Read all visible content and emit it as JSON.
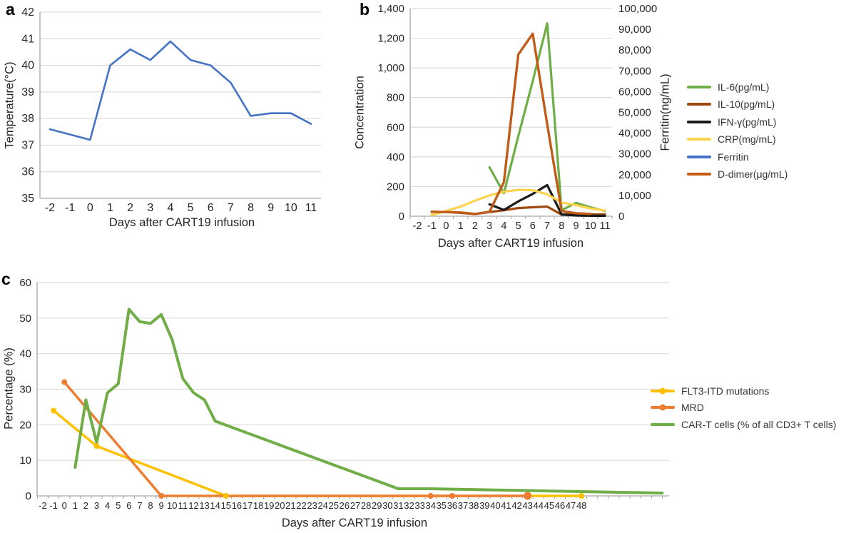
{
  "figure": {
    "panels": [
      {
        "id": "a",
        "label": "a"
      },
      {
        "id": "b",
        "label": "b"
      },
      {
        "id": "c",
        "label": "c"
      }
    ]
  },
  "chart_data": [
    {
      "panel": "a",
      "type": "line",
      "title": "",
      "xlabel": "Days after CART19 infusion",
      "ylabel": "Temperature(°C)",
      "x_domain": [
        -2,
        11
      ],
      "x_labels": [
        "-2",
        "-1",
        "0",
        "1",
        "2",
        "3",
        "4",
        "5",
        "6",
        "7",
        "8",
        "9",
        "10",
        "11"
      ],
      "ylim": [
        35,
        42
      ],
      "y_ticks": [
        35,
        36,
        37,
        38,
        39,
        40,
        41,
        42
      ],
      "y_tick_labels": [
        "35",
        "36",
        "37",
        "38",
        "39",
        "40",
        "41",
        "42"
      ],
      "grid": true,
      "legend_position": "none",
      "series": [
        {
          "name": "Temperature",
          "color": "#4472C4",
          "width": 2.6,
          "axis": "left",
          "points": [
            [
              -2,
              37.6
            ],
            [
              -1,
              37.4
            ],
            [
              0,
              37.2
            ],
            [
              1,
              40.0
            ],
            [
              2,
              40.6
            ],
            [
              3,
              40.2
            ],
            [
              4,
              40.9
            ],
            [
              5,
              40.2
            ],
            [
              6,
              40.0
            ],
            [
              7,
              39.35
            ],
            [
              8,
              38.1
            ],
            [
              9,
              38.2
            ],
            [
              10,
              38.2
            ],
            [
              11,
              37.8
            ]
          ]
        }
      ]
    },
    {
      "panel": "b",
      "type": "line",
      "title": "",
      "xlabel": "Days after CART19 infusion",
      "ylabel_left": "Concentration",
      "ylabel_right": "Ferritin(ng/mL)",
      "x_domain": [
        -2,
        11
      ],
      "x_labels": [
        "-2",
        "-1",
        "0",
        "1",
        "2",
        "3",
        "4",
        "5",
        "6",
        "7",
        "8",
        "9",
        "10",
        "11"
      ],
      "ylim": [
        0,
        1400
      ],
      "y_ticks": [
        0,
        200,
        400,
        600,
        800,
        1000,
        1200,
        1400
      ],
      "y_tick_labels": [
        "0",
        "200",
        "400",
        "600",
        "800",
        "1,000",
        "1,200",
        "1,400"
      ],
      "ylim_right": [
        0,
        100000
      ],
      "y_ticks_right": [
        0,
        10000,
        20000,
        30000,
        40000,
        50000,
        60000,
        70000,
        80000,
        90000,
        100000
      ],
      "y_tick_labels_right": [
        "0",
        "10,000",
        "20,000",
        "30,000",
        "40,000",
        "50,000",
        "60,000",
        "70,000",
        "80,000",
        "90,000",
        "100,000"
      ],
      "grid": true,
      "legend_position": "right",
      "series": [
        {
          "name": "IL-6(pg/mL)",
          "color": "#6FAD47",
          "width": 3.2,
          "axis": "left",
          "points": [
            [
              3,
              330
            ],
            [
              4,
              155
            ],
            [
              5,
              540
            ],
            [
              6,
              910
            ],
            [
              7,
              1300
            ],
            [
              8,
              40
            ],
            [
              9,
              90
            ],
            [
              10,
              60
            ],
            [
              11,
              35
            ]
          ]
        },
        {
          "name": "IL-10(pg/mL)",
          "color": "#9E480E",
          "width": 3.2,
          "axis": "left",
          "points": [
            [
              -1,
              30
            ],
            [
              0,
              28
            ],
            [
              1,
              22
            ],
            [
              2,
              15
            ],
            [
              3,
              28
            ],
            [
              4,
              40
            ],
            [
              5,
              55
            ],
            [
              6,
              60
            ],
            [
              7,
              65
            ],
            [
              8,
              10
            ],
            [
              9,
              18
            ],
            [
              10,
              12
            ],
            [
              11,
              12
            ]
          ]
        },
        {
          "name": "IFN-γ(pg/mL)",
          "color": "#1a1a1a",
          "width": 3.2,
          "axis": "left",
          "points": [
            [
              3,
              80
            ],
            [
              4,
              42
            ],
            [
              5,
              100
            ],
            [
              6,
              150
            ],
            [
              7,
              210
            ],
            [
              8,
              12
            ],
            [
              9,
              5
            ],
            [
              10,
              3
            ],
            [
              11,
              3
            ]
          ]
        },
        {
          "name": "CRP(mg/mL)",
          "color": "#FFD34D",
          "width": 3.2,
          "axis": "left",
          "points": [
            [
              -1,
              8
            ],
            [
              0,
              35
            ],
            [
              1,
              65
            ],
            [
              2,
              105
            ],
            [
              3,
              140
            ],
            [
              4,
              165
            ],
            [
              5,
              178
            ],
            [
              6,
              175
            ],
            [
              7,
              148
            ],
            [
              8,
              92
            ],
            [
              9,
              75
            ],
            [
              10,
              52
            ],
            [
              11,
              38
            ]
          ]
        },
        {
          "name": "Ferritin",
          "color": "#4472C4",
          "width": 3.2,
          "axis": "right",
          "points": [
            [
              -1,
              2100
            ],
            [
              0,
              2000
            ],
            [
              1,
              1800
            ],
            [
              2,
              1100
            ],
            [
              3,
              2100
            ],
            [
              4,
              16400
            ],
            [
              5,
              77900
            ],
            [
              6,
              87900
            ],
            [
              7,
              44300
            ],
            [
              8,
              2500
            ],
            [
              9,
              1400
            ],
            [
              10,
              1100
            ]
          ]
        },
        {
          "name": "D-dimer(μg/mL)",
          "color": "#C55A11",
          "width": 3.2,
          "axis": "left",
          "points": [
            [
              -1,
              30
            ],
            [
              0,
              28
            ],
            [
              1,
              25
            ],
            [
              2,
              15
            ],
            [
              3,
              30
            ],
            [
              4,
              230
            ],
            [
              5,
              1090
            ],
            [
              6,
              1230
            ],
            [
              7,
              620
            ],
            [
              8,
              35
            ],
            [
              9,
              20
            ],
            [
              10,
              15
            ]
          ]
        }
      ]
    },
    {
      "panel": "c",
      "type": "line",
      "title": "",
      "xlabel": "Days after CART19 infusion",
      "ylabel": "Percentage (%)",
      "x_domain": [
        -2,
        56
      ],
      "x_labels": [
        "-2",
        "-1",
        "0",
        "1",
        "2",
        "3",
        "4",
        "5",
        "6",
        "7",
        "8",
        "9",
        "10",
        "11",
        "12",
        "13",
        "14",
        "15",
        "16",
        "17",
        "18",
        "19",
        "20",
        "21",
        "22",
        "23",
        "24",
        "25",
        "26",
        "27",
        "28",
        "29",
        "30",
        "31",
        "32",
        "33",
        "34",
        "35",
        "36",
        "37",
        "38",
        "39",
        "40",
        "41",
        "42",
        "43",
        "44",
        "45",
        "46",
        "47",
        "48"
      ],
      "ylim": [
        0,
        60
      ],
      "y_ticks": [
        0,
        10,
        20,
        30,
        40,
        50,
        60
      ],
      "y_tick_labels": [
        "0",
        "10",
        "20",
        "30",
        "40",
        "50",
        "60"
      ],
      "grid": true,
      "legend_position": "right",
      "series": [
        {
          "name": "FLT3-ITD mutations",
          "color": "#FFC000",
          "width": 3.5,
          "axis": "left",
          "points": [
            [
              -1,
              24
            ],
            [
              3,
              14
            ],
            [
              15,
              0
            ],
            [
              48,
              0
            ]
          ],
          "markers": [
            [
              -1,
              24
            ],
            [
              3,
              14
            ],
            [
              15,
              0
            ],
            [
              48,
              0
            ]
          ]
        },
        {
          "name": "MRD",
          "color": "#ED7D31",
          "width": 3.5,
          "axis": "left",
          "points": [
            [
              0,
              32
            ],
            [
              9,
              0
            ],
            [
              43,
              0
            ]
          ],
          "markers": [
            [
              0,
              32
            ],
            [
              9,
              0
            ],
            [
              34,
              0
            ],
            [
              36,
              0
            ],
            [
              43,
              0,
              5.5
            ]
          ]
        },
        {
          "name": "CAR-T cells (% of all CD3+ T cells)",
          "color": "#70AD47",
          "width": 4,
          "axis": "left",
          "points": [
            [
              1,
              8
            ],
            [
              2,
              27
            ],
            [
              3,
              15
            ],
            [
              4,
              29
            ],
            [
              5,
              31.5
            ],
            [
              6,
              52.5
            ],
            [
              7,
              49
            ],
            [
              8,
              48.5
            ],
            [
              9,
              51
            ],
            [
              10,
              44
            ],
            [
              11,
              33
            ],
            [
              12,
              29
            ],
            [
              13,
              27
            ],
            [
              14,
              21
            ],
            [
              31,
              2
            ],
            [
              34,
              2
            ],
            [
              43,
              1.5
            ],
            [
              48,
              1.2
            ],
            [
              55.5,
              0.8
            ]
          ]
        }
      ]
    }
  ]
}
